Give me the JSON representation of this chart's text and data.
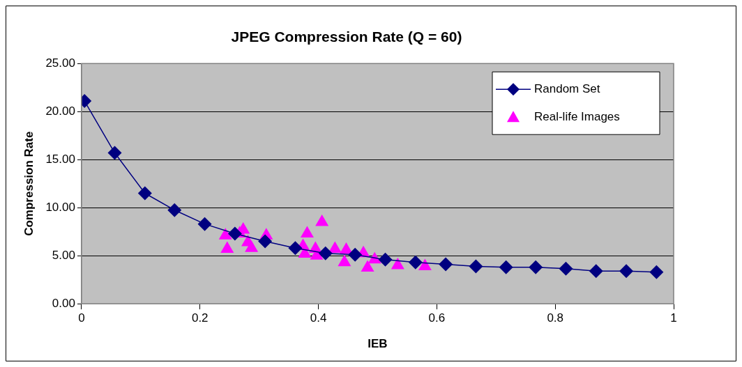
{
  "chart_data": {
    "type": "scatter",
    "title": "JPEG Compression Rate (Q = 60)",
    "xlabel": "IEB",
    "ylabel": "Compression Rate",
    "series": [
      {
        "name": "Random Set",
        "type": "line",
        "marker": "diamond",
        "color": "#000080",
        "x": [
          0.005,
          0.056,
          0.107,
          0.157,
          0.208,
          0.259,
          0.31,
          0.361,
          0.412,
          0.462,
          0.513,
          0.564,
          0.615,
          0.666,
          0.717,
          0.767,
          0.818,
          0.869,
          0.92,
          0.971
        ],
        "values": [
          21.1,
          15.7,
          11.5,
          9.75,
          8.3,
          7.3,
          6.5,
          5.8,
          5.25,
          5.1,
          4.6,
          4.3,
          4.1,
          3.9,
          3.8,
          3.8,
          3.65,
          3.4,
          3.4,
          3.3
        ]
      },
      {
        "name": "Real-life Images",
        "type": "scatter",
        "marker": "triangle",
        "color": "#ff00ff",
        "x": [
          0.243,
          0.246,
          0.267,
          0.273,
          0.281,
          0.287,
          0.312,
          0.381,
          0.406,
          0.374,
          0.377,
          0.395,
          0.397,
          0.428,
          0.447,
          0.444,
          0.476,
          0.495,
          0.483,
          0.534,
          0.58
        ],
        "values": [
          7.1,
          5.7,
          7.3,
          7.7,
          6.4,
          5.8,
          7.1,
          7.3,
          8.5,
          6.0,
          5.2,
          5.7,
          5.0,
          5.7,
          5.6,
          4.3,
          5.25,
          4.6,
          3.75,
          4.0,
          3.9
        ]
      }
    ],
    "xlim": [
      0,
      1
    ],
    "xticks": [
      0,
      0.2,
      0.4,
      0.6,
      0.8,
      1
    ],
    "ylim": [
      0,
      25
    ],
    "yticks": [
      {
        "value": 0,
        "label": "0.00"
      },
      {
        "value": 5,
        "label": "5.00"
      },
      {
        "value": 10,
        "label": "10.00"
      },
      {
        "value": 15,
        "label": "15.00"
      },
      {
        "value": 20,
        "label": "20.00"
      },
      {
        "value": 25,
        "label": "25.00"
      }
    ],
    "grid": "y",
    "legend": "top right"
  }
}
